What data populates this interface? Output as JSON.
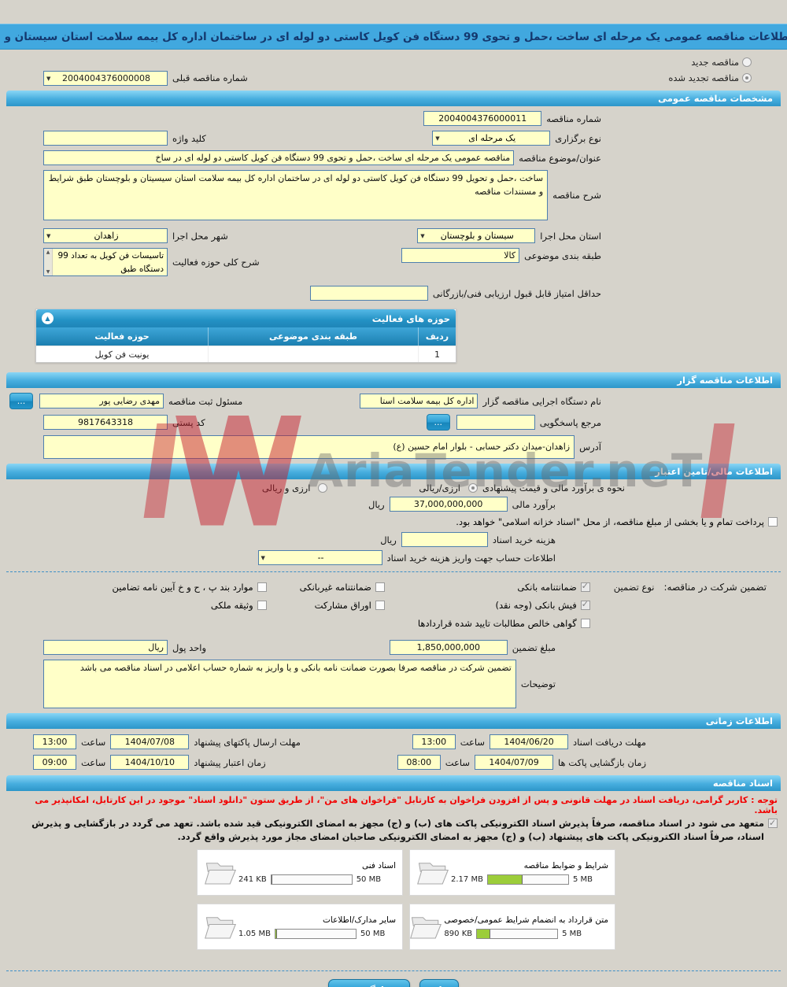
{
  "header": {
    "title": "مشاهده اطلاعات مناقصه عمومی یک مرحله ای ساخت ،حمل و تحوی 99 دستگاه فن کویل کاستی دو لوله ای در ساختمان اداره کل بیمه سلامت استان سیستان و بلوچستان"
  },
  "top": {
    "new_label": "مناقصه جدید",
    "renewed_label": "مناقصه تجدید شده",
    "renewed_selected": true,
    "prev_number_label": "شماره مناقصه قبلی",
    "prev_number": "2004004376000008"
  },
  "general": {
    "title": "مشخصات مناقصه عمومی",
    "number_label": "شماره مناقصه",
    "number": "2004004376000011",
    "type_label": "نوع برگزاری",
    "type": "یک مرحله ای",
    "keyword_label": "کلید واژه",
    "keyword": "",
    "subject_label": "عنوان/موضوع مناقصه",
    "subject": "مناقصه عمومی یک مرحله ای ساخت ،حمل و تحوی 99 دستگاه فن کویل کاستی دو لوله ای در ساخ",
    "desc_label": "شرح مناقصه",
    "desc": "ساخت ،حمل و تحویل 99 دستگاه فن کویل کاستی دو لوله ای در ساختمان اداره کل بیمه سلامت استان سیسیتان و بلوچستان طبق شرایط و مستندات مناقصه",
    "province_label": "استان محل اجرا",
    "province": "سیستان و بلوچستان",
    "city_label": "شهر محل اجرا",
    "city": "زاهدان",
    "category_label": "طبقه بندی موضوعی",
    "category": "کالا",
    "activity_label": "شرح کلی حوزه فعالیت",
    "activity": "تاسیسات فن کویل به تعداد 99 دستگاه طبق",
    "min_score_label": "حداقل امتیاز قابل قبول ارزیابی فنی/بازرگانی",
    "min_score": ""
  },
  "activity_table": {
    "title": "حوزه های فعالیت",
    "col_row": "ردیف",
    "col_category": "طبقه بندی موضوعی",
    "col_activity": "حوزه فعالیت",
    "rows": [
      {
        "row": "1",
        "category": "",
        "activity": "یونیت فن کویل"
      }
    ]
  },
  "organizer": {
    "title": "اطلاعات مناقصه گزار",
    "agency_label": "نام دستگاه اجرایی مناقصه گزار",
    "agency": "اداره کل بیمه سلامت استا",
    "registrar_label": "مسئول ثبت مناقصه",
    "registrar": "مهدی رضایی پور",
    "more_button": "...",
    "reference_label": "مرجع پاسخگویی",
    "reference": "",
    "postal_label": "کد پستی",
    "postal": "9817643318",
    "address_label": "آدرس",
    "address": "زاهدان-میدان دکتر حسابی - بلوار امام حسین (ع)"
  },
  "financial": {
    "title": "اطلاعات مالی/تامین اعتبار",
    "method_label": "نحوه ی برآورد مالی و قیمت پیشنهادی",
    "method_opt1": "ارزی/ریالی",
    "method_opt1_selected": true,
    "method_opt2": "ارزی و ریالی",
    "estimate_label": "برآورد مالی",
    "estimate": "37,000,000,000",
    "estimate_unit": "ریال",
    "treasury_note": "پرداخت تمام و یا بخشی از مبلغ مناقصه، از محل \"اسناد خزانه اسلامی\" خواهد بود.",
    "fee_label": "هزینه خرید اسناد",
    "fee": "",
    "fee_unit": "ریال",
    "account_label": "اطلاعات حساب جهت واریز هزینه خرید اسناد",
    "account": "--"
  },
  "guarantee": {
    "heading": "تضمین شرکت در مناقصه:",
    "type_label": "نوع تضمین",
    "options": [
      {
        "label": "ضمانتنامه بانکی",
        "checked": true
      },
      {
        "label": "فیش بانکی (وجه نقد)",
        "checked": true
      },
      {
        "label": "گواهی خالص مطالبات تایید شده قراردادها",
        "checked": false
      },
      {
        "label": "ضمانتنامه غیربانکی",
        "checked": false
      },
      {
        "label": "اوراق مشارکت",
        "checked": false
      },
      {
        "label": "موارد بند پ ، ح و خ آیین نامه تضامین",
        "checked": false
      },
      {
        "label": "وثیقه ملکی",
        "checked": false
      }
    ],
    "amount_label": "مبلغ تضمین",
    "amount": "1,850,000,000",
    "currency_label": "واحد پول",
    "currency": "ریال",
    "notes_label": "توضیحات",
    "notes": "تضمین شرکت در مناقصه صرفا بصورت ضمانت نامه بانکی و یا واریز به شماره حساب اعلامی در اسناد مناقصه می باشد"
  },
  "schedule": {
    "title": "اطلاعات زمانی",
    "items": [
      {
        "label": "مهلت دریافت اسناد",
        "date": "1404/06/20",
        "time_label": "ساعت",
        "time": "13:00"
      },
      {
        "label": "مهلت ارسال پاکتهای پیشنهاد",
        "date": "1404/07/08",
        "time_label": "ساعت",
        "time": "13:00"
      },
      {
        "label": "زمان بازگشایی پاکت ها",
        "date": "1404/07/09",
        "time_label": "ساعت",
        "time": "08:00"
      },
      {
        "label": "زمان اعتبار پیشنهاد",
        "date": "1404/10/10",
        "time_label": "ساعت",
        "time": "09:00"
      }
    ]
  },
  "documents": {
    "title": "اسناد مناقصه",
    "notice": "توجه : کاربر گرامی، دریافت اسناد در مهلت قانونی و پس از افزودن فراخوان به کارتابل \"فراخوان های من\"، از طریق ستون \"دانلود اسناد\" موجود در این کارتابل، امکانپذیر می باشد.",
    "commitment": "متعهد می شود در اسناد مناقصه، صرفاً پذیرش اسناد الکترونیکی پاکت های (ب) و (ج) مجهز به امضای الکترونیکی قید شده باشد. تعهد می گردد در بازگشایی و پذیرش اسناد، صرفاً اسناد الکترونیکی پاکت های پیشنهاد (ب) و (ج) مجهز به امضای الکترونیکی صاحبان امضای مجاز مورد پذیرش واقع گردد.",
    "files": [
      {
        "name": "شرایط و ضوابط مناقصه",
        "size": "2.17 MB",
        "max": "5 MB",
        "pct": 43
      },
      {
        "name": "اسناد فنی",
        "size": "241 KB",
        "max": "50 MB",
        "pct": 1
      },
      {
        "name": "متن قرارداد به انضمام شرایط عمومی/خصوصی",
        "size": "890 KB",
        "max": "5 MB",
        "pct": 17
      },
      {
        "name": "سایر مدارک/اطلاعات",
        "size": "1.05 MB",
        "max": "50 MB",
        "pct": 2
      }
    ]
  },
  "footer": {
    "print": "چاپ",
    "back": "بازگشت"
  },
  "watermark": {
    "text": "AriaTender.neT"
  },
  "colors": {
    "header_blue": "#41a8df",
    "section_blue": "#2f9fd6",
    "input_yellow": "#ffffc8",
    "progress_green": "#9ccd3a",
    "notice_red": "#f20000"
  }
}
